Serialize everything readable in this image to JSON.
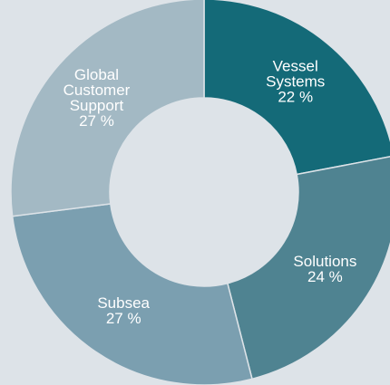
{
  "chart_data": {
    "type": "donut",
    "categories": [
      "Vessel Systems",
      "Solutions",
      "Subsea",
      "Global Customer Support"
    ],
    "values": [
      22,
      24,
      27,
      27
    ],
    "value_labels": [
      "22 %",
      "24 %",
      "27 %",
      "27 %"
    ],
    "colors": [
      "#146a78",
      "#4f8391",
      "#7b9fb0",
      "#a3b9c4"
    ]
  }
}
